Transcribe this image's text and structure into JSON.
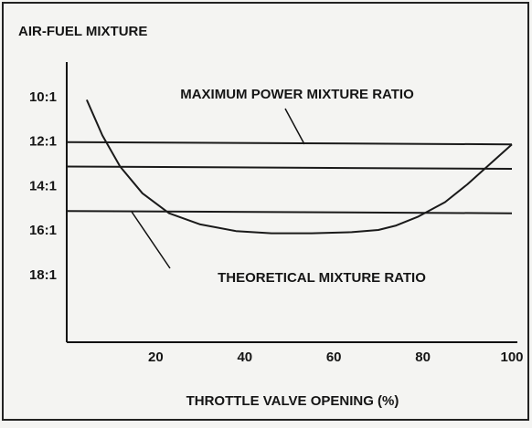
{
  "chart_data": {
    "type": "line",
    "y_axis_label": "AIR-FUEL MIXTURE",
    "x_axis_label": "THROTTLE VALVE OPENING (%)",
    "annotations": [
      "MAXIMUM POWER MIXTURE RATIO",
      "THEORETICAL MIXTURE RATIO"
    ],
    "xlim": [
      0,
      100
    ],
    "xticks": [
      20,
      40,
      60,
      80,
      100
    ],
    "ylim": [
      21,
      8.4
    ],
    "yticks": [
      {
        "value": 10,
        "label": "10:1"
      },
      {
        "value": 12,
        "label": "12:1"
      },
      {
        "value": 14,
        "label": "14:1"
      },
      {
        "value": 16,
        "label": "16:1"
      },
      {
        "value": 18,
        "label": "18:1"
      }
    ],
    "grid": false,
    "series": [
      {
        "color": "#1a1a1a",
        "x": [
          0,
          100
        ],
        "values": [
          12.0,
          12.1
        ]
      },
      {
        "color": "#1a1a1a",
        "x": [
          0,
          100
        ],
        "values": [
          13.1,
          13.2
        ]
      },
      {
        "color": "#1a1a1a",
        "x": [
          0,
          100
        ],
        "values": [
          15.1,
          15.2
        ]
      },
      {
        "color": "#1a1a1a",
        "x": [
          4.5,
          8,
          12,
          17,
          23,
          30,
          38,
          46,
          55,
          64,
          70,
          74,
          79,
          85,
          90,
          95,
          100
        ],
        "values": [
          10.1,
          11.7,
          13.1,
          14.3,
          15.2,
          15.7,
          16.0,
          16.1,
          16.1,
          16.05,
          15.95,
          15.75,
          15.35,
          14.7,
          13.9,
          13.0,
          12.1
        ]
      }
    ]
  }
}
